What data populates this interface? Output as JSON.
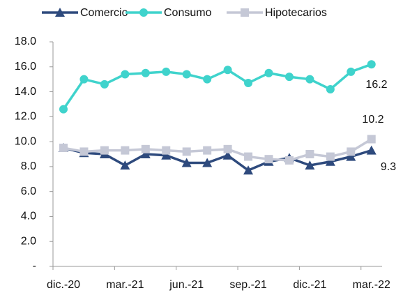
{
  "chart_data": {
    "type": "line",
    "categories": [
      "dic.-20",
      null,
      null,
      "mar.-21",
      null,
      null,
      "jun.-21",
      null,
      null,
      "sep.-21",
      null,
      null,
      "dic.-21",
      null,
      null,
      "mar.-22"
    ],
    "series": [
      {
        "name": "Comercio",
        "color": "#2e4a7d",
        "marker": "triangle",
        "values": [
          9.5,
          9.1,
          9.0,
          8.1,
          9.0,
          8.9,
          8.3,
          8.3,
          8.9,
          7.7,
          8.4,
          8.7,
          8.1,
          8.4,
          8.8,
          9.3
        ]
      },
      {
        "name": "Consumo",
        "color": "#3fd3cc",
        "marker": "circle",
        "values": [
          12.6,
          15.0,
          14.6,
          15.4,
          15.5,
          15.6,
          15.4,
          15.0,
          15.75,
          14.7,
          15.5,
          15.2,
          15.0,
          14.2,
          15.6,
          16.2
        ]
      },
      {
        "name": "Hipotecarios",
        "color": "#c5c8d6",
        "marker": "square",
        "values": [
          9.5,
          9.2,
          9.3,
          9.3,
          9.4,
          9.3,
          9.2,
          9.3,
          9.4,
          8.8,
          8.6,
          8.5,
          9.0,
          8.8,
          9.2,
          10.2
        ]
      }
    ],
    "ylim": [
      0,
      18
    ],
    "yticks": [
      {
        "value": 0,
        "label": "-"
      },
      {
        "value": 2,
        "label": "2.0"
      },
      {
        "value": 4,
        "label": "4.0"
      },
      {
        "value": 6,
        "label": "6.0"
      },
      {
        "value": 8,
        "label": "8.0"
      },
      {
        "value": 10,
        "label": "10.0"
      },
      {
        "value": 12,
        "label": "12.0"
      },
      {
        "value": 14,
        "label": "14.0"
      },
      {
        "value": 16,
        "label": "16.0"
      },
      {
        "value": 18,
        "label": "18.0"
      }
    ],
    "grid": false,
    "legend": "top"
  }
}
